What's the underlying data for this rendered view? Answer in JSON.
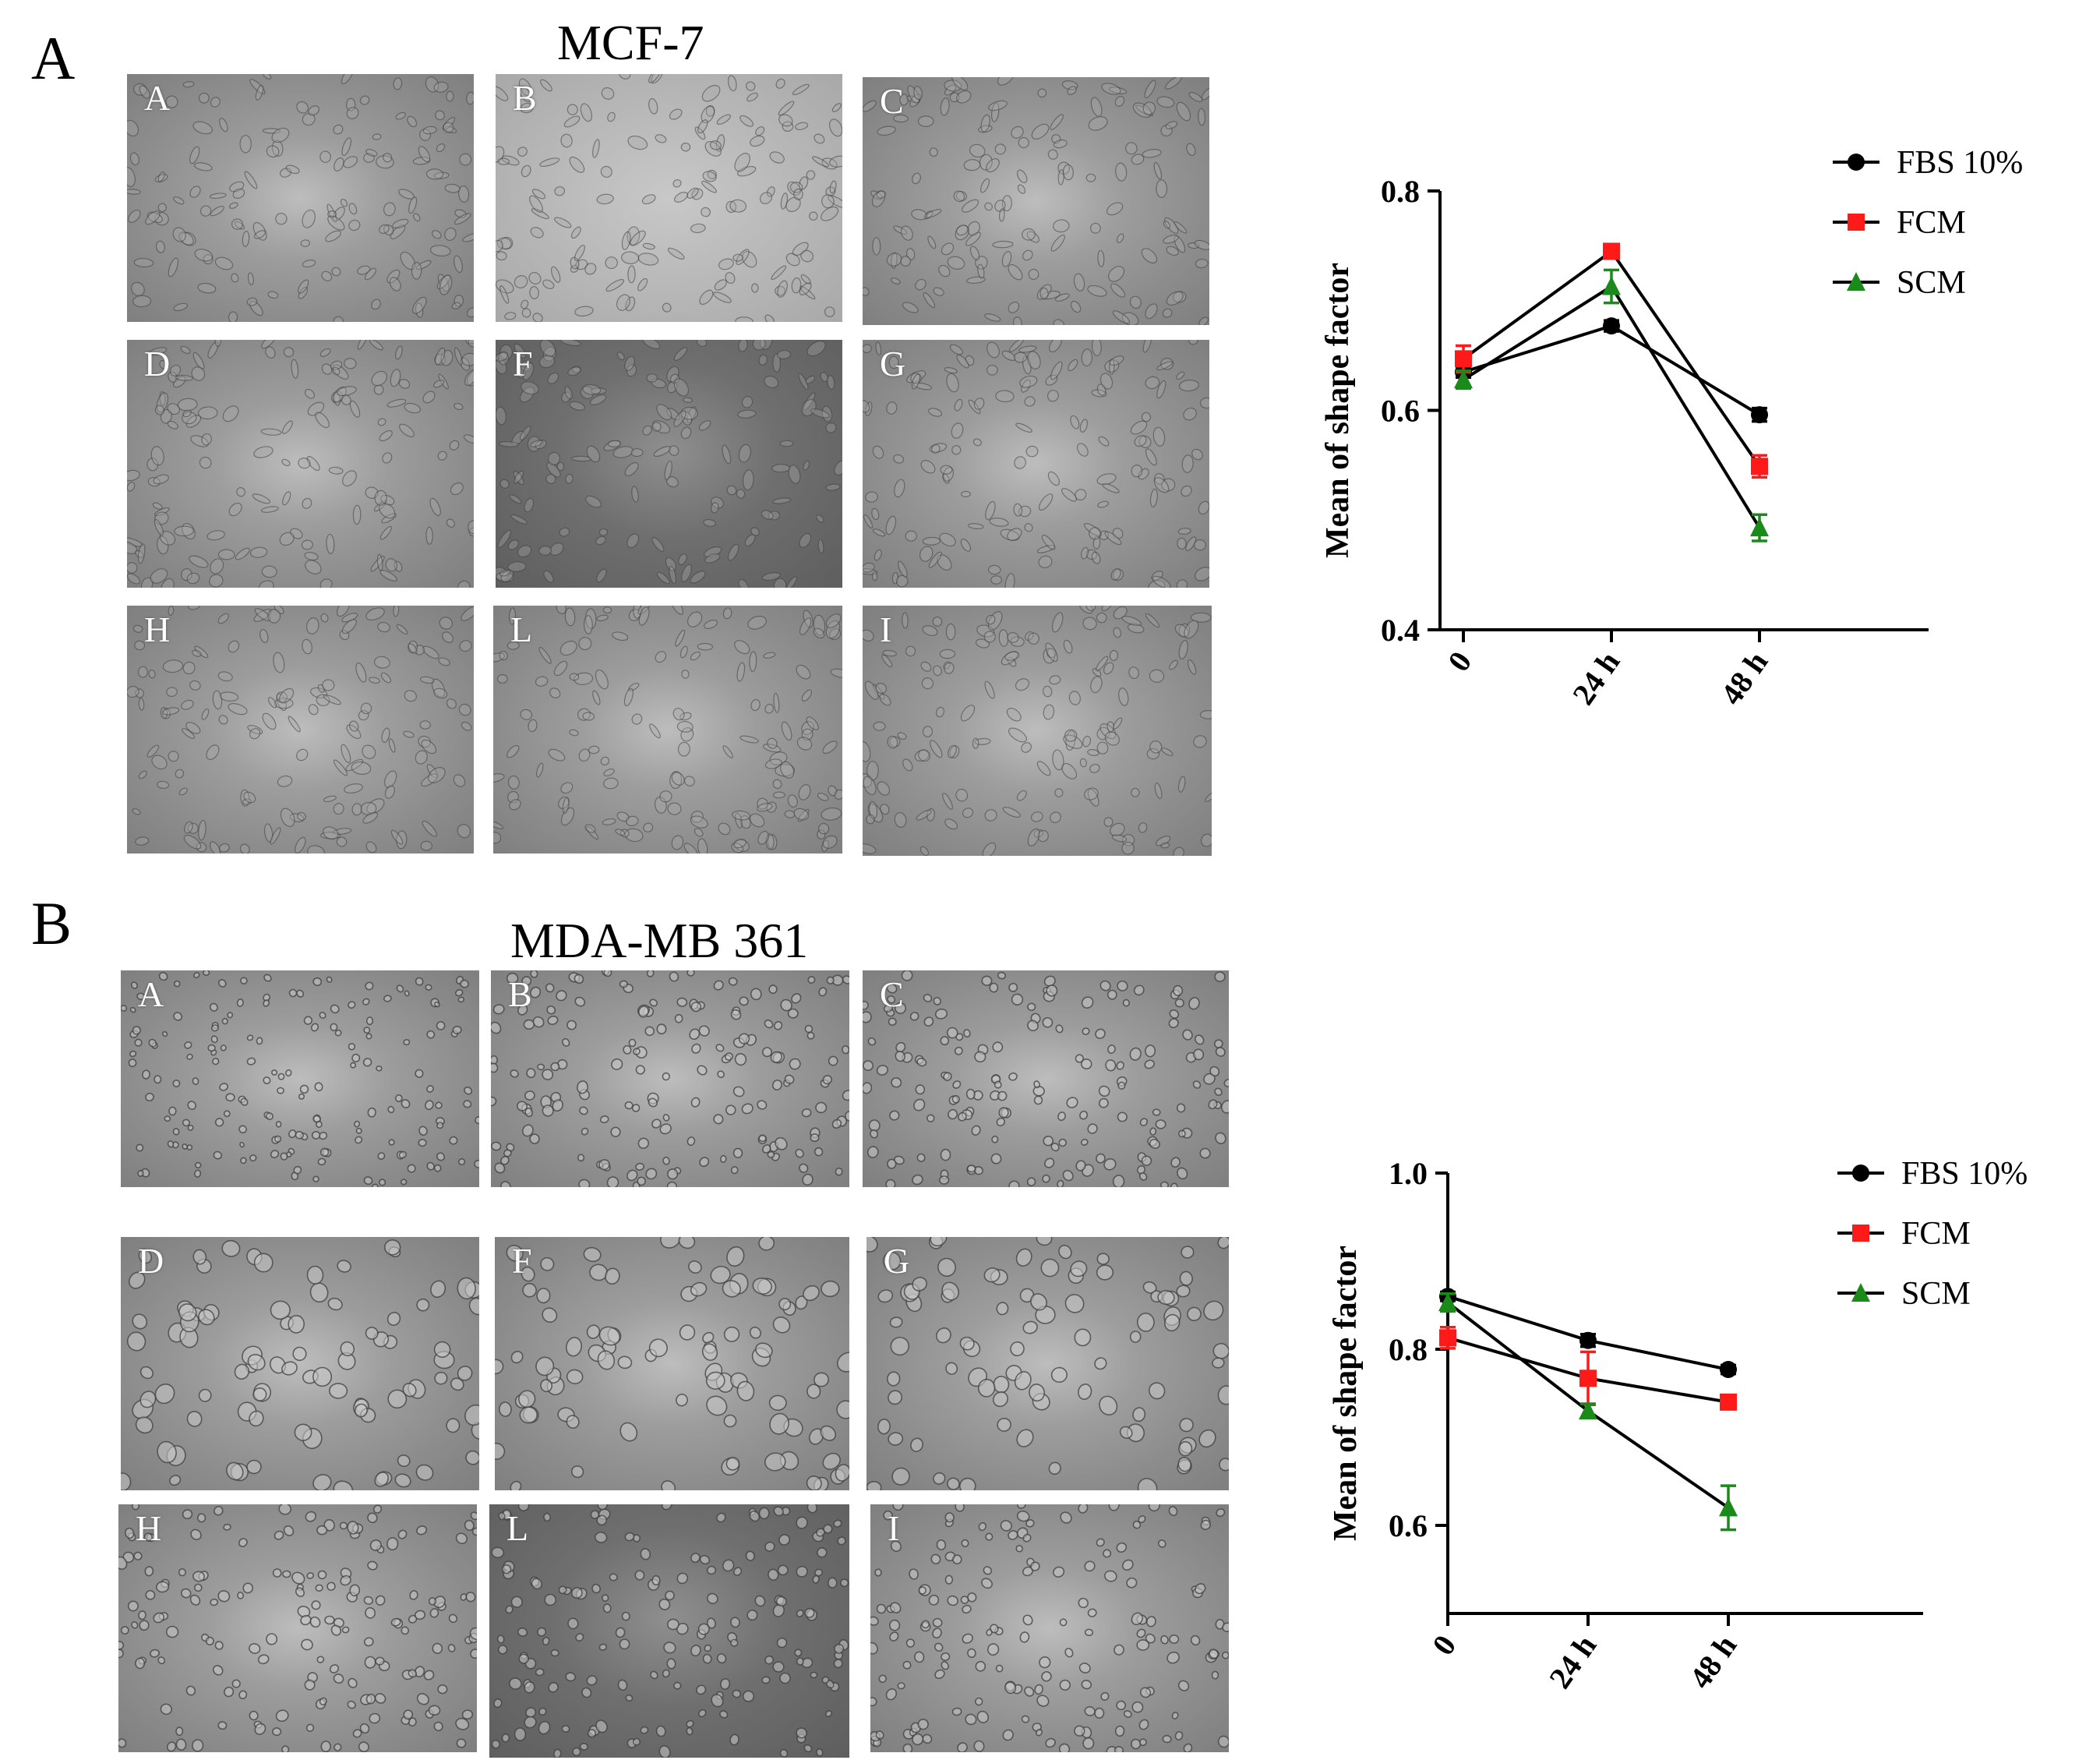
{
  "figure": {
    "panel_letters": [
      "A",
      "B"
    ],
    "panels": [
      {
        "cell_line": "MCF-7",
        "micrograph_labels": [
          "A",
          "B",
          "C",
          "D",
          "F",
          "G",
          "H",
          "L",
          "I"
        ]
      },
      {
        "cell_line": "MDA-MB 361",
        "micrograph_labels": [
          "A",
          "B",
          "C",
          "D",
          "F",
          "G",
          "H",
          "L",
          "I"
        ]
      }
    ]
  },
  "chart_data": [
    {
      "type": "line",
      "title": "",
      "xlabel": "",
      "ylabel": "Mean of shape factor",
      "categories": [
        "0",
        "24 h",
        "48 h"
      ],
      "ylim": [
        0.4,
        0.8
      ],
      "yticks": [
        "0.4",
        "0.6",
        "0.8"
      ],
      "legend_position": "top-right",
      "series": [
        {
          "name": "FBS 10%",
          "color": "#000000",
          "marker": "circle",
          "values": [
            0.635,
            0.677,
            0.596
          ],
          "errors": [
            0.005,
            0.005,
            0.006
          ]
        },
        {
          "name": "FCM",
          "color": "#ff1a1a",
          "marker": "square",
          "values": [
            0.647,
            0.745,
            0.549
          ],
          "errors": [
            0.012,
            0.005,
            0.01
          ]
        },
        {
          "name": "SCM",
          "color": "#1a8a1a",
          "marker": "triangle",
          "values": [
            0.628,
            0.713,
            0.493
          ],
          "errors": [
            0.008,
            0.015,
            0.012
          ]
        }
      ]
    },
    {
      "type": "line",
      "title": "",
      "xlabel": "",
      "ylabel": "Mean of shape factor",
      "categories": [
        "0",
        "24 h",
        "48 h"
      ],
      "ylim": [
        0.5,
        1.0
      ],
      "yticks": [
        "0.6",
        "0.8",
        "1.0"
      ],
      "legend_position": "top-right",
      "series": [
        {
          "name": "FBS 10%",
          "color": "#000000",
          "marker": "circle",
          "values": [
            0.86,
            0.81,
            0.777
          ],
          "errors": [
            0.005,
            0.007,
            0.005
          ]
        },
        {
          "name": "FCM",
          "color": "#ff1a1a",
          "marker": "square",
          "values": [
            0.813,
            0.767,
            0.74
          ],
          "errors": [
            0.012,
            0.03,
            0.008
          ]
        },
        {
          "name": "SCM",
          "color": "#1a8a1a",
          "marker": "triangle",
          "values": [
            0.853,
            0.73,
            0.62
          ],
          "errors": [
            0.01,
            0.008,
            0.025
          ]
        }
      ]
    }
  ]
}
